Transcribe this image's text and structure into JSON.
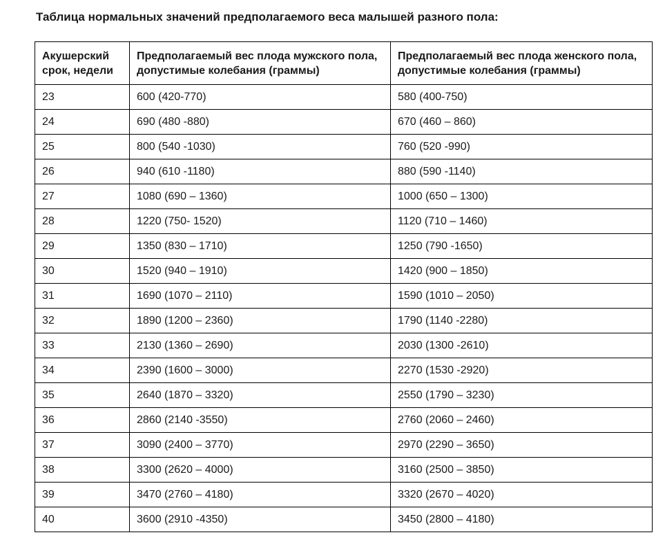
{
  "page": {
    "title": "Таблица нормальных значений предполагаемого веса малышей разного пола:"
  },
  "table": {
    "columns": [
      "Акушерский срок, недели",
      "Предполагаемый вес плода мужского пола, допустимые колебания (граммы)",
      "Предполагаемый вес плода женского пола, допустимые колебания (граммы)"
    ],
    "rows": [
      {
        "week": "23",
        "male": "600 (420-770)",
        "female": "580 (400-750)"
      },
      {
        "week": "24",
        "male": "690 (480 -880)",
        "female": "670 (460 – 860)"
      },
      {
        "week": "25",
        "male": "800 (540 -1030)",
        "female": "760 (520 -990)"
      },
      {
        "week": "26",
        "male": "940 (610 -1180)",
        "female": "880 (590 -1140)"
      },
      {
        "week": "27",
        "male": "1080 (690 – 1360)",
        "female": "1000 (650 – 1300)"
      },
      {
        "week": "28",
        "male": "1220 (750- 1520)",
        "female": "1120 (710 – 1460)"
      },
      {
        "week": "29",
        "male": "1350 (830 – 1710)",
        "female": "1250 (790 -1650)"
      },
      {
        "week": "30",
        "male": "1520 (940 – 1910)",
        "female": "1420 (900 – 1850)"
      },
      {
        "week": "31",
        "male": "1690 (1070 – 2110)",
        "female": "1590 (1010 – 2050)"
      },
      {
        "week": "32",
        "male": "1890 (1200 – 2360)",
        "female": "1790 (1140 -2280)"
      },
      {
        "week": "33",
        "male": "2130 (1360 – 2690)",
        "female": "2030 (1300 -2610)"
      },
      {
        "week": "34",
        "male": "2390 (1600 – 3000)",
        "female": "2270 (1530 -2920)"
      },
      {
        "week": "35",
        "male": "2640 (1870 – 3320)",
        "female": "2550 (1790 – 3230)"
      },
      {
        "week": "36",
        "male": "2860 (2140 -3550)",
        "female": "2760 (2060 – 2460)"
      },
      {
        "week": "37",
        "male": "3090 (2400 – 3770)",
        "female": "2970 (2290 – 3650)"
      },
      {
        "week": "38",
        "male": "3300 (2620 – 4000)",
        "female": "3160 (2500 – 3850)"
      },
      {
        "week": "39",
        "male": "3470 (2760 – 4180)",
        "female": "3320 (2670 – 4020)"
      },
      {
        "week": "40",
        "male": "3600 (2910 -4350)",
        "female": "3450 (2800 – 4180)"
      }
    ]
  },
  "colors": {
    "background": "#ffffff",
    "text": "#1a1a1a",
    "border": "#000000"
  }
}
